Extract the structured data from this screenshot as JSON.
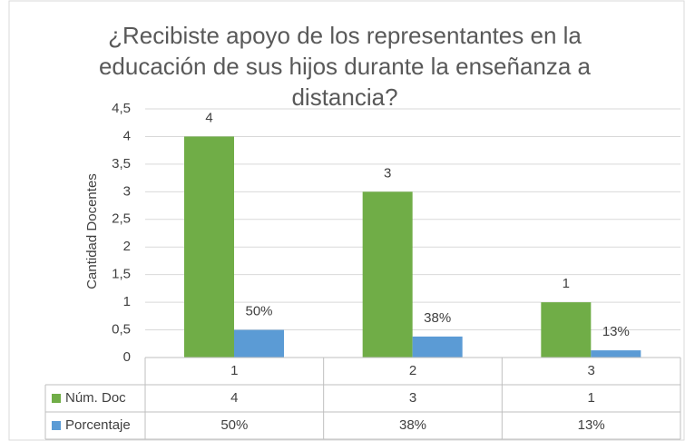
{
  "chart_data": {
    "type": "bar",
    "title": "¿Recibiste apoyo de los representantes en la educación de sus hijos durante la enseñanza a distancia?",
    "y_label": "Cantidad Docentes",
    "categories": [
      "1",
      "2",
      "3"
    ],
    "series": [
      {
        "name": "Núm. Doc",
        "color": "#70ad47",
        "values": [
          4,
          3,
          1
        ]
      },
      {
        "name": "Porcentaje",
        "color": "#5b9bd5",
        "values": [
          0.5,
          0.38,
          0.13
        ],
        "value_labels": [
          "50%",
          "38%",
          "13%"
        ]
      }
    ],
    "ylim": [
      0,
      4.5
    ],
    "yticks": [
      0,
      {
        "value": 0.5,
        "label": "0,5"
      },
      1,
      {
        "value": 1.5,
        "label": "1,5"
      },
      2,
      {
        "value": 2.5,
        "label": "2,5"
      },
      3,
      {
        "value": 3.5,
        "label": "3,5"
      },
      4,
      {
        "value": 4.5,
        "label": "4,5"
      }
    ],
    "grid": true,
    "data_table": true
  }
}
